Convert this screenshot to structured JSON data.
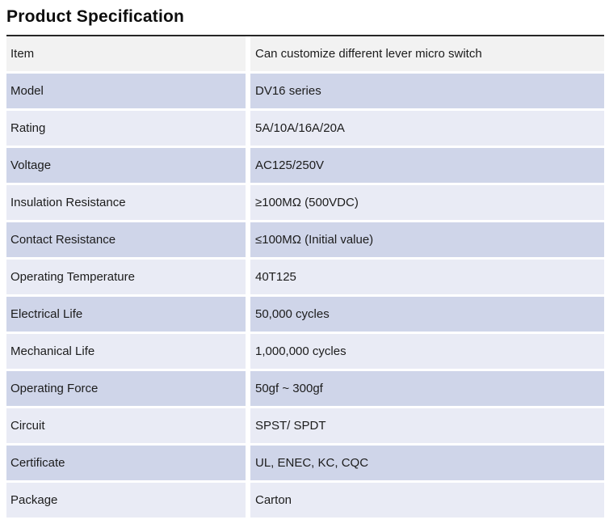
{
  "page_title": "Product Specification",
  "colors": {
    "header_row_bg": "#f2f2f2",
    "row_medium_bg": "#cfd5e9",
    "row_light_bg": "#e9ebf5",
    "top_rule": "#262626",
    "text": "#1c1c1c"
  },
  "table": {
    "rows": [
      {
        "label": "Item",
        "value": "Can customize different lever micro switch"
      },
      {
        "label": "Model",
        "value": "DV16 series"
      },
      {
        "label": "Rating",
        "value": "5A/10A/16A/20A"
      },
      {
        "label": "Voltage",
        "value": "AC125/250V"
      },
      {
        "label": "Insulation Resistance",
        "value": "≥100MΩ (500VDC)"
      },
      {
        "label": "Contact Resistance",
        "value": "≤100MΩ (Initial value)"
      },
      {
        "label": "Operating Temperature",
        "value": "40T125"
      },
      {
        "label": "Electrical Life",
        "value": "50,000 cycles"
      },
      {
        "label": "Mechanical Life",
        "value": "1,000,000 cycles"
      },
      {
        "label": "Operating Force",
        "value": "50gf ~  300gf"
      },
      {
        "label": "Circuit",
        "value": "SPST/ SPDT"
      },
      {
        "label": "Certificate",
        "value": "UL, ENEC, KC, CQC"
      },
      {
        "label": "Package",
        "value": "Carton"
      }
    ]
  }
}
